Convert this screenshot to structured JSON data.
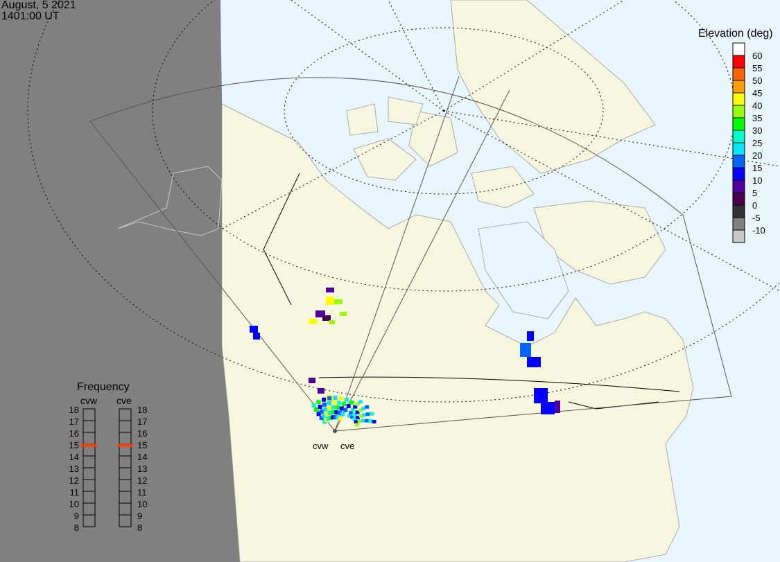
{
  "header": {
    "date": "August, 5 2021",
    "time": "1401:00 UT"
  },
  "colorbar": {
    "title": "Elevation (deg)",
    "colors": [
      "#ffffff",
      "#ff0000",
      "#ff6400",
      "#ffa000",
      "#ffff00",
      "#96ff00",
      "#00ff00",
      "#00ffc8",
      "#00e6ff",
      "#0064ff",
      "#0000ff",
      "#5000a0",
      "#4b0050",
      "#323232",
      "#808080",
      "#c8c8c8"
    ],
    "labels": [
      "60",
      "55",
      "50",
      "45",
      "40",
      "35",
      "30",
      "25",
      "20",
      "15",
      "10",
      "5",
      "0",
      "-5",
      "-10"
    ]
  },
  "frequency": {
    "title": "Frequency",
    "radars": [
      {
        "name": "cvw",
        "value_mhz": 14.9
      },
      {
        "name": "cve",
        "value_mhz": 14.9
      }
    ],
    "ticks": [
      "18",
      "17",
      "16",
      "15",
      "14",
      "13",
      "12",
      "11",
      "10",
      "9",
      "8"
    ],
    "range_mhz": [
      8,
      18
    ],
    "marker_color": "#ff4000"
  },
  "radar_labels": [
    "cvw",
    "cve"
  ],
  "map_colors": {
    "ocean": "#eaf6fe",
    "land": "#f7f7e0",
    "night": "#808080"
  }
}
